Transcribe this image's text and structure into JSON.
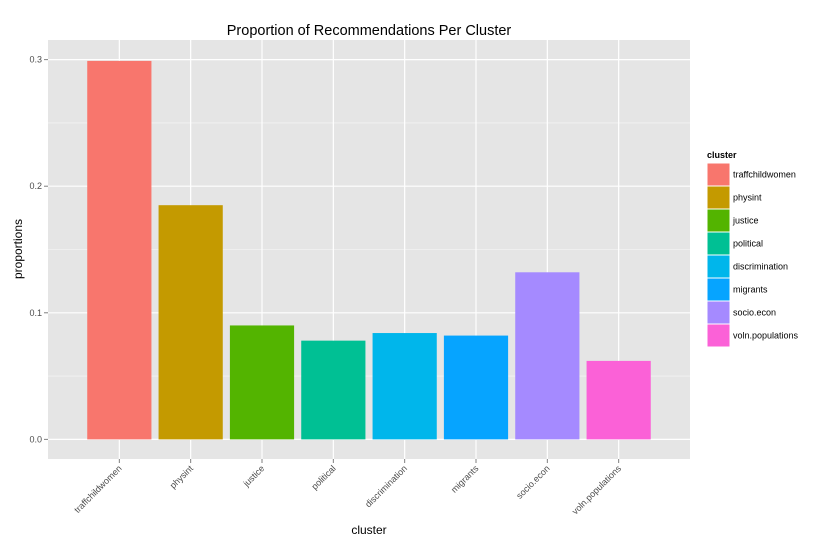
{
  "chart_data": {
    "type": "bar",
    "title": "Proportion of Recommendations Per Cluster",
    "xlabel": "cluster",
    "ylabel": "proportions",
    "categories": [
      "traffchildwomen",
      "physint",
      "justice",
      "political",
      "discrimination",
      "migrants",
      "socio.econ",
      "voln.populations"
    ],
    "values": [
      0.299,
      0.185,
      0.09,
      0.078,
      0.084,
      0.082,
      0.132,
      0.062
    ],
    "colors": [
      "#F8766D",
      "#C49A00",
      "#53B400",
      "#00C094",
      "#00B6EB",
      "#06A4FF",
      "#A58AFF",
      "#FB61D7"
    ],
    "ylim": [
      -0.0155,
      0.3155
    ],
    "yticks": [
      0.0,
      0.1,
      0.2,
      0.3
    ],
    "ytick_labels": [
      "0.0",
      "0.1",
      "0.2",
      "0.3"
    ],
    "grid": true,
    "legend": {
      "title": "cluster",
      "position": "right",
      "entries": [
        "traffchildwomen",
        "physint",
        "justice",
        "political",
        "discrimination",
        "migrants",
        "socio.econ",
        "voln.populations"
      ]
    },
    "theme": {
      "panel_bg": "#E5E5E5",
      "grid_major": "#FFFFFF",
      "grid_minor": "#F2F2F2",
      "tick_color": "#7F7F7F"
    }
  }
}
